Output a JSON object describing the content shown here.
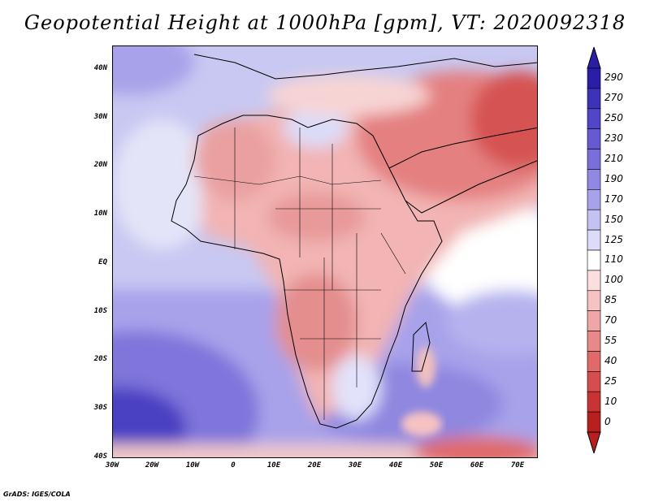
{
  "title": "Geopotential Height at 1000hPa [gpm], VT: 2020092318",
  "footer": "GrADS: IGES/COLA",
  "lat_labels": [
    "40N",
    "30N",
    "20N",
    "10N",
    "EQ",
    "10S",
    "20S",
    "30S",
    "40S"
  ],
  "lon_labels": [
    "30W",
    "20W",
    "10W",
    "0",
    "10E",
    "20E",
    "30E",
    "40E",
    "50E",
    "60E",
    "70E"
  ],
  "colorbar": {
    "levels": [
      "290",
      "270",
      "250",
      "230",
      "210",
      "190",
      "170",
      "150",
      "125",
      "110",
      "100",
      "85",
      "70",
      "55",
      "40",
      "25",
      "10",
      "0"
    ],
    "colors": [
      "#2a1ea6",
      "#3d33b8",
      "#5145c8",
      "#6659d2",
      "#7a6fda",
      "#9088e2",
      "#a7a2ea",
      "#c3c2f2",
      "#dcdcf8",
      "#ffffff",
      "#fbdede",
      "#f6c2c2",
      "#f0a6a6",
      "#e98888",
      "#e06a6a",
      "#d54d4d",
      "#c83333",
      "#b82020"
    ]
  },
  "map": {
    "region": "Africa",
    "lon_range": [
      -30,
      75
    ],
    "lat_range": [
      -40,
      45
    ],
    "variable": "Geopotential Height at 1000hPa",
    "units": "gpm",
    "valid_time": "2020092318"
  }
}
